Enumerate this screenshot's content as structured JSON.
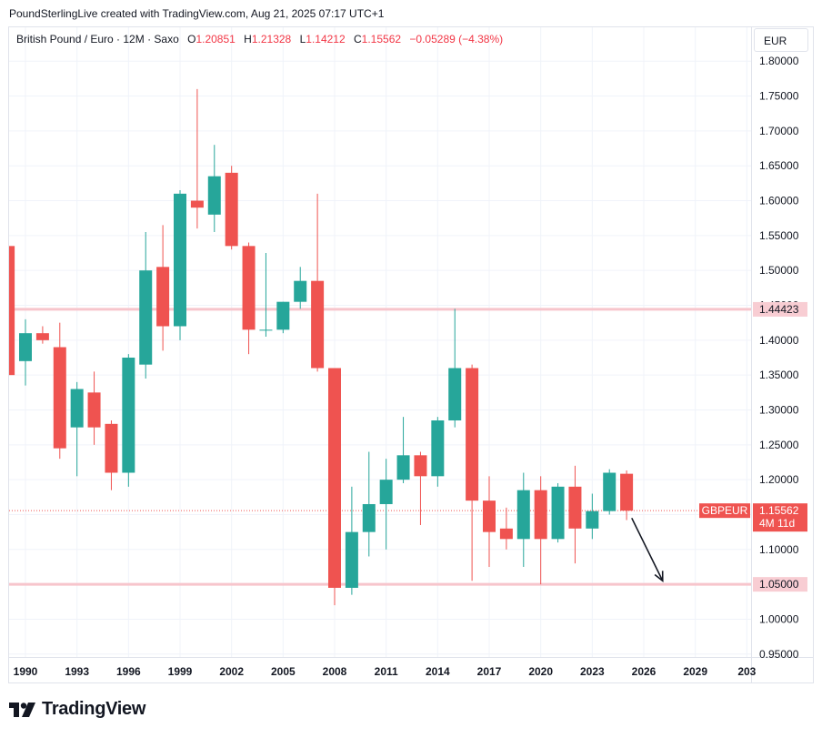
{
  "header": {
    "credit": "PoundSterlingLive created with TradingView.com, Aug 21, 2025 07:17 UTC+1"
  },
  "legend": {
    "symbol": "British Pound / Euro · 12M · Saxo",
    "o_label": "O",
    "o": "1.20851",
    "h_label": "H",
    "h": "1.21328",
    "l_label": "L",
    "l": "1.14212",
    "c_label": "C",
    "c": "1.15562",
    "change": "−0.05289 (−4.38%)"
  },
  "currency_button": "EUR",
  "footer": {
    "brand": "TradingView"
  },
  "colors": {
    "up": "#26a69a",
    "down": "#ef5350",
    "level": "#f7c5cc",
    "level_tag": "#f8cdd3",
    "price_tag": "#ef5350"
  },
  "chart_data": {
    "type": "candlestick",
    "title": "British Pound / Euro · 12M · Saxo",
    "xlabel": "",
    "ylabel": "",
    "x_ticks": [
      "1990",
      "1993",
      "1996",
      "1999",
      "2002",
      "2005",
      "2008",
      "2011",
      "2014",
      "2017",
      "2020",
      "2023",
      "2026",
      "2029",
      "203"
    ],
    "y_ticks": [
      "0.95000",
      "1.00000",
      "1.05000",
      "1.10000",
      "1.15000",
      "1.20000",
      "1.25000",
      "1.30000",
      "1.35000",
      "1.40000",
      "1.45000",
      "1.50000",
      "1.55000",
      "1.60000",
      "1.65000",
      "1.70000",
      "1.75000",
      "1.80000"
    ],
    "ylim": [
      0.95,
      1.8
    ],
    "xlim": [
      1989.2,
      2032.3
    ],
    "grid": true,
    "candles": [
      {
        "year": 1989,
        "o": 1.535,
        "h": 1.535,
        "l": 1.35,
        "c": 1.35
      },
      {
        "year": 1990,
        "o": 1.37,
        "h": 1.43,
        "l": 1.335,
        "c": 1.41
      },
      {
        "year": 1991,
        "o": 1.41,
        "h": 1.42,
        "l": 1.395,
        "c": 1.4
      },
      {
        "year": 1992,
        "o": 1.39,
        "h": 1.425,
        "l": 1.23,
        "c": 1.245
      },
      {
        "year": 1993,
        "o": 1.275,
        "h": 1.34,
        "l": 1.205,
        "c": 1.33
      },
      {
        "year": 1994,
        "o": 1.325,
        "h": 1.355,
        "l": 1.25,
        "c": 1.275
      },
      {
        "year": 1995,
        "o": 1.28,
        "h": 1.285,
        "l": 1.185,
        "c": 1.21
      },
      {
        "year": 1996,
        "o": 1.21,
        "h": 1.38,
        "l": 1.19,
        "c": 1.375
      },
      {
        "year": 1997,
        "o": 1.365,
        "h": 1.555,
        "l": 1.345,
        "c": 1.5
      },
      {
        "year": 1998,
        "o": 1.505,
        "h": 1.565,
        "l": 1.385,
        "c": 1.42
      },
      {
        "year": 1999,
        "o": 1.42,
        "h": 1.615,
        "l": 1.4,
        "c": 1.61
      },
      {
        "year": 2000,
        "o": 1.6,
        "h": 1.76,
        "l": 1.56,
        "c": 1.59
      },
      {
        "year": 2001,
        "o": 1.58,
        "h": 1.68,
        "l": 1.555,
        "c": 1.635
      },
      {
        "year": 2002,
        "o": 1.64,
        "h": 1.65,
        "l": 1.53,
        "c": 1.535
      },
      {
        "year": 2003,
        "o": 1.535,
        "h": 1.54,
        "l": 1.38,
        "c": 1.415
      },
      {
        "year": 2004,
        "o": 1.415,
        "h": 1.525,
        "l": 1.405,
        "c": 1.415
      },
      {
        "year": 2005,
        "o": 1.415,
        "h": 1.455,
        "l": 1.41,
        "c": 1.455
      },
      {
        "year": 2006,
        "o": 1.455,
        "h": 1.505,
        "l": 1.445,
        "c": 1.485
      },
      {
        "year": 2007,
        "o": 1.485,
        "h": 1.61,
        "l": 1.355,
        "c": 1.36
      },
      {
        "year": 2008,
        "o": 1.36,
        "h": 1.36,
        "l": 1.02,
        "c": 1.045
      },
      {
        "year": 2009,
        "o": 1.045,
        "h": 1.19,
        "l": 1.035,
        "c": 1.125
      },
      {
        "year": 2010,
        "o": 1.125,
        "h": 1.24,
        "l": 1.09,
        "c": 1.165
      },
      {
        "year": 2011,
        "o": 1.165,
        "h": 1.23,
        "l": 1.1,
        "c": 1.2
      },
      {
        "year": 2012,
        "o": 1.2,
        "h": 1.29,
        "l": 1.195,
        "c": 1.235
      },
      {
        "year": 2013,
        "o": 1.235,
        "h": 1.24,
        "l": 1.135,
        "c": 1.205
      },
      {
        "year": 2014,
        "o": 1.205,
        "h": 1.29,
        "l": 1.19,
        "c": 1.285
      },
      {
        "year": 2015,
        "o": 1.285,
        "h": 1.445,
        "l": 1.275,
        "c": 1.36
      },
      {
        "year": 2016,
        "o": 1.36,
        "h": 1.365,
        "l": 1.055,
        "c": 1.17
      },
      {
        "year": 2017,
        "o": 1.17,
        "h": 1.205,
        "l": 1.075,
        "c": 1.125
      },
      {
        "year": 2018,
        "o": 1.13,
        "h": 1.16,
        "l": 1.1,
        "c": 1.115
      },
      {
        "year": 2019,
        "o": 1.115,
        "h": 1.21,
        "l": 1.075,
        "c": 1.185
      },
      {
        "year": 2020,
        "o": 1.185,
        "h": 1.205,
        "l": 1.05,
        "c": 1.115
      },
      {
        "year": 2021,
        "o": 1.115,
        "h": 1.195,
        "l": 1.11,
        "c": 1.19
      },
      {
        "year": 2022,
        "o": 1.19,
        "h": 1.22,
        "l": 1.08,
        "c": 1.13
      },
      {
        "year": 2023,
        "o": 1.13,
        "h": 1.18,
        "l": 1.115,
        "c": 1.155
      },
      {
        "year": 2024,
        "o": 1.155,
        "h": 1.215,
        "l": 1.15,
        "c": 1.21
      },
      {
        "year": 2025,
        "o": 1.20851,
        "h": 1.21328,
        "l": 1.14212,
        "c": 1.15562
      }
    ],
    "levels": [
      {
        "value": 1.44423,
        "label": "1.44423"
      },
      {
        "value": 1.05,
        "label": "1.05000"
      }
    ],
    "current_price": {
      "value": 1.15562,
      "symbol": "GBPEUR",
      "label": "1.15562",
      "countdown": "4M 11d"
    },
    "annotation_arrow": {
      "from": {
        "year": 2025.3,
        "value": 1.145
      },
      "to": {
        "year": 2027.1,
        "value": 1.055
      }
    }
  }
}
